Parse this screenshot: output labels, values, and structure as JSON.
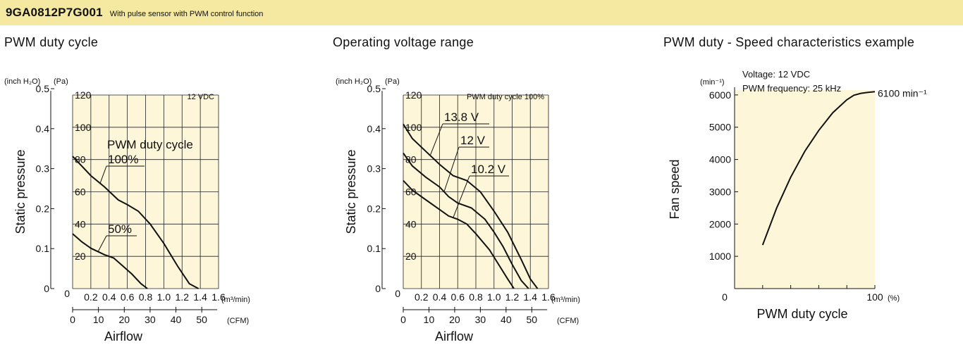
{
  "header": {
    "model": "9GA0812P7G001",
    "description": "With pulse sensor with PWM control function",
    "band_color": "#f5e8a0"
  },
  "chart_data": [
    {
      "type": "line",
      "title": "PWM duty cycle",
      "plot_bg": "#fdf6d8",
      "grid": true,
      "note": "12 VDC",
      "xlabel": "Airflow",
      "ylabel": "Static pressure",
      "x_unit_primary": "(m³/min)",
      "x_unit_secondary": "(CFM)",
      "y_unit_left": "(inch H₂O)",
      "y_unit_right": "(Pa)",
      "xlim": [
        0,
        1.6
      ],
      "ylim": [
        0,
        120
      ],
      "x_ticks": [
        "0",
        "0.2",
        "0.4",
        "0.6",
        "0.8",
        "1.0",
        "1.2",
        "1.4",
        "1.6"
      ],
      "cfm_ticks": [
        "0",
        "10",
        "20",
        "30",
        "40",
        "50"
      ],
      "y_ticks_pa": [
        "0",
        "20",
        "40",
        "60",
        "80",
        "100",
        "120"
      ],
      "y_ticks_inch": [
        "0",
        "0.1",
        "0.2",
        "0.3",
        "0.4",
        "0.5"
      ],
      "series_group_label": "PWM duty cycle",
      "series": [
        {
          "name": "100%",
          "x": [
            0,
            0.1,
            0.2,
            0.35,
            0.5,
            0.6,
            0.72,
            0.85,
            1.0,
            1.15,
            1.28,
            1.38
          ],
          "y": [
            82,
            76,
            70,
            63,
            55,
            52,
            48,
            40,
            28,
            14,
            3,
            0
          ]
        },
        {
          "name": "50%",
          "x": [
            0,
            0.1,
            0.2,
            0.35,
            0.45,
            0.55,
            0.65,
            0.75,
            0.82
          ],
          "y": [
            34,
            29,
            25,
            21,
            19,
            14,
            9,
            3,
            0
          ]
        }
      ]
    },
    {
      "type": "line",
      "title": "Operating voltage range",
      "plot_bg": "#fdf6d8",
      "grid": true,
      "note": "PWM duty cycle 100%",
      "xlabel": "Airflow",
      "ylabel": "Static pressure",
      "x_unit_primary": "(m³/min)",
      "x_unit_secondary": "(CFM)",
      "y_unit_left": "(inch H₂O)",
      "y_unit_right": "(Pa)",
      "xlim": [
        0,
        1.6
      ],
      "ylim": [
        0,
        120
      ],
      "x_ticks": [
        "0",
        "0.2",
        "0.4",
        "0.6",
        "0.8",
        "1.0",
        "1.2",
        "1.4",
        "1.6"
      ],
      "cfm_ticks": [
        "0",
        "10",
        "20",
        "30",
        "40",
        "50"
      ],
      "y_ticks_pa": [
        "0",
        "20",
        "40",
        "60",
        "80",
        "100",
        "120"
      ],
      "y_ticks_inch": [
        "0",
        "0.1",
        "0.2",
        "0.3",
        "0.4",
        "0.5"
      ],
      "series": [
        {
          "name": "13.8 V",
          "x": [
            0,
            0.1,
            0.25,
            0.4,
            0.55,
            0.7,
            0.85,
            1.0,
            1.15,
            1.3,
            1.4,
            1.48
          ],
          "y": [
            102,
            93,
            85,
            77,
            70,
            67,
            60,
            48,
            35,
            18,
            6,
            0
          ]
        },
        {
          "name": "12 V",
          "x": [
            0,
            0.1,
            0.25,
            0.4,
            0.5,
            0.6,
            0.75,
            0.9,
            1.0,
            1.1,
            1.2,
            1.3,
            1.38
          ],
          "y": [
            84,
            76,
            69,
            63,
            57,
            53,
            50,
            43,
            35,
            26,
            15,
            5,
            0
          ]
        },
        {
          "name": "10.2 V",
          "x": [
            0,
            0.1,
            0.25,
            0.4,
            0.5,
            0.6,
            0.7,
            0.8,
            0.95,
            1.05,
            1.15,
            1.22
          ],
          "y": [
            67,
            61,
            55,
            49,
            45,
            43,
            40,
            34,
            24,
            15,
            6,
            0
          ]
        }
      ]
    },
    {
      "type": "line",
      "title": "PWM duty - Speed characteristics example",
      "plot_bg": "#fdf6d8",
      "grid": false,
      "notes": [
        "Voltage: 12 VDC",
        "PWM frequency: 25 kHz"
      ],
      "xlabel": "PWM duty cycle",
      "ylabel": "Fan speed",
      "y_unit": "(min⁻¹)",
      "x_unit": "(%)",
      "xlim": [
        0,
        100
      ],
      "ylim": [
        0,
        6000
      ],
      "x_ticks": [
        "0",
        "100"
      ],
      "y_ticks": [
        "1000",
        "2000",
        "3000",
        "4000",
        "5000",
        "6000"
      ],
      "end_label": "6100 min⁻¹",
      "series": [
        {
          "name": "",
          "x": [
            20,
            30,
            40,
            50,
            60,
            70,
            80,
            85,
            90,
            95,
            100
          ],
          "y": [
            1350,
            2500,
            3450,
            4250,
            4900,
            5450,
            5850,
            5990,
            6050,
            6080,
            6100
          ]
        }
      ]
    }
  ]
}
